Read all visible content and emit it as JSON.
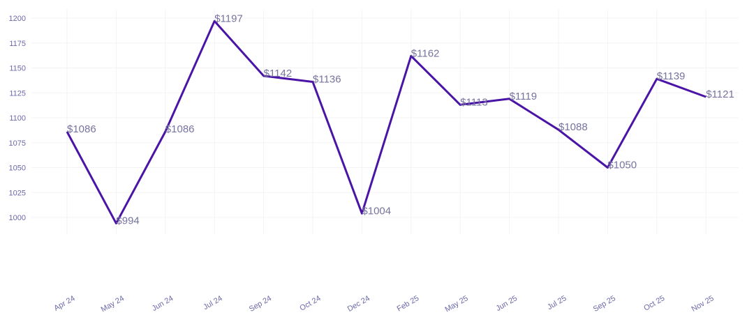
{
  "chart_data": {
    "type": "line",
    "title": "",
    "xlabel": "",
    "ylabel": "",
    "categories": [
      "Apr 24",
      "May 24",
      "Jun 24",
      "Jul 24",
      "Sep 24",
      "Oct 24",
      "Dec 24",
      "Feb 25",
      "May 25",
      "Jun 25",
      "Jul 25",
      "Sep 25",
      "Oct 25",
      "Nov 25"
    ],
    "values": [
      1086,
      994,
      1086,
      1197,
      1142,
      1136,
      1004,
      1162,
      1113,
      1119,
      1088,
      1050,
      1139,
      1121
    ],
    "data_labels": [
      "$1086",
      "$994",
      "$1086",
      "$1197",
      "$1142",
      "$1136",
      "$1004",
      "$1162",
      "$1113",
      "$1119",
      "$1088",
      "$1050",
      "$1139",
      "$1121"
    ],
    "yticks": [
      1000,
      1025,
      1050,
      1075,
      1100,
      1125,
      1150,
      1175,
      1200
    ],
    "ylim": [
      983,
      1209
    ],
    "grid": true,
    "legend": "none",
    "line_color": "#4a14a6",
    "label_color": "#76749e",
    "tick_color": "#6b68a8"
  }
}
